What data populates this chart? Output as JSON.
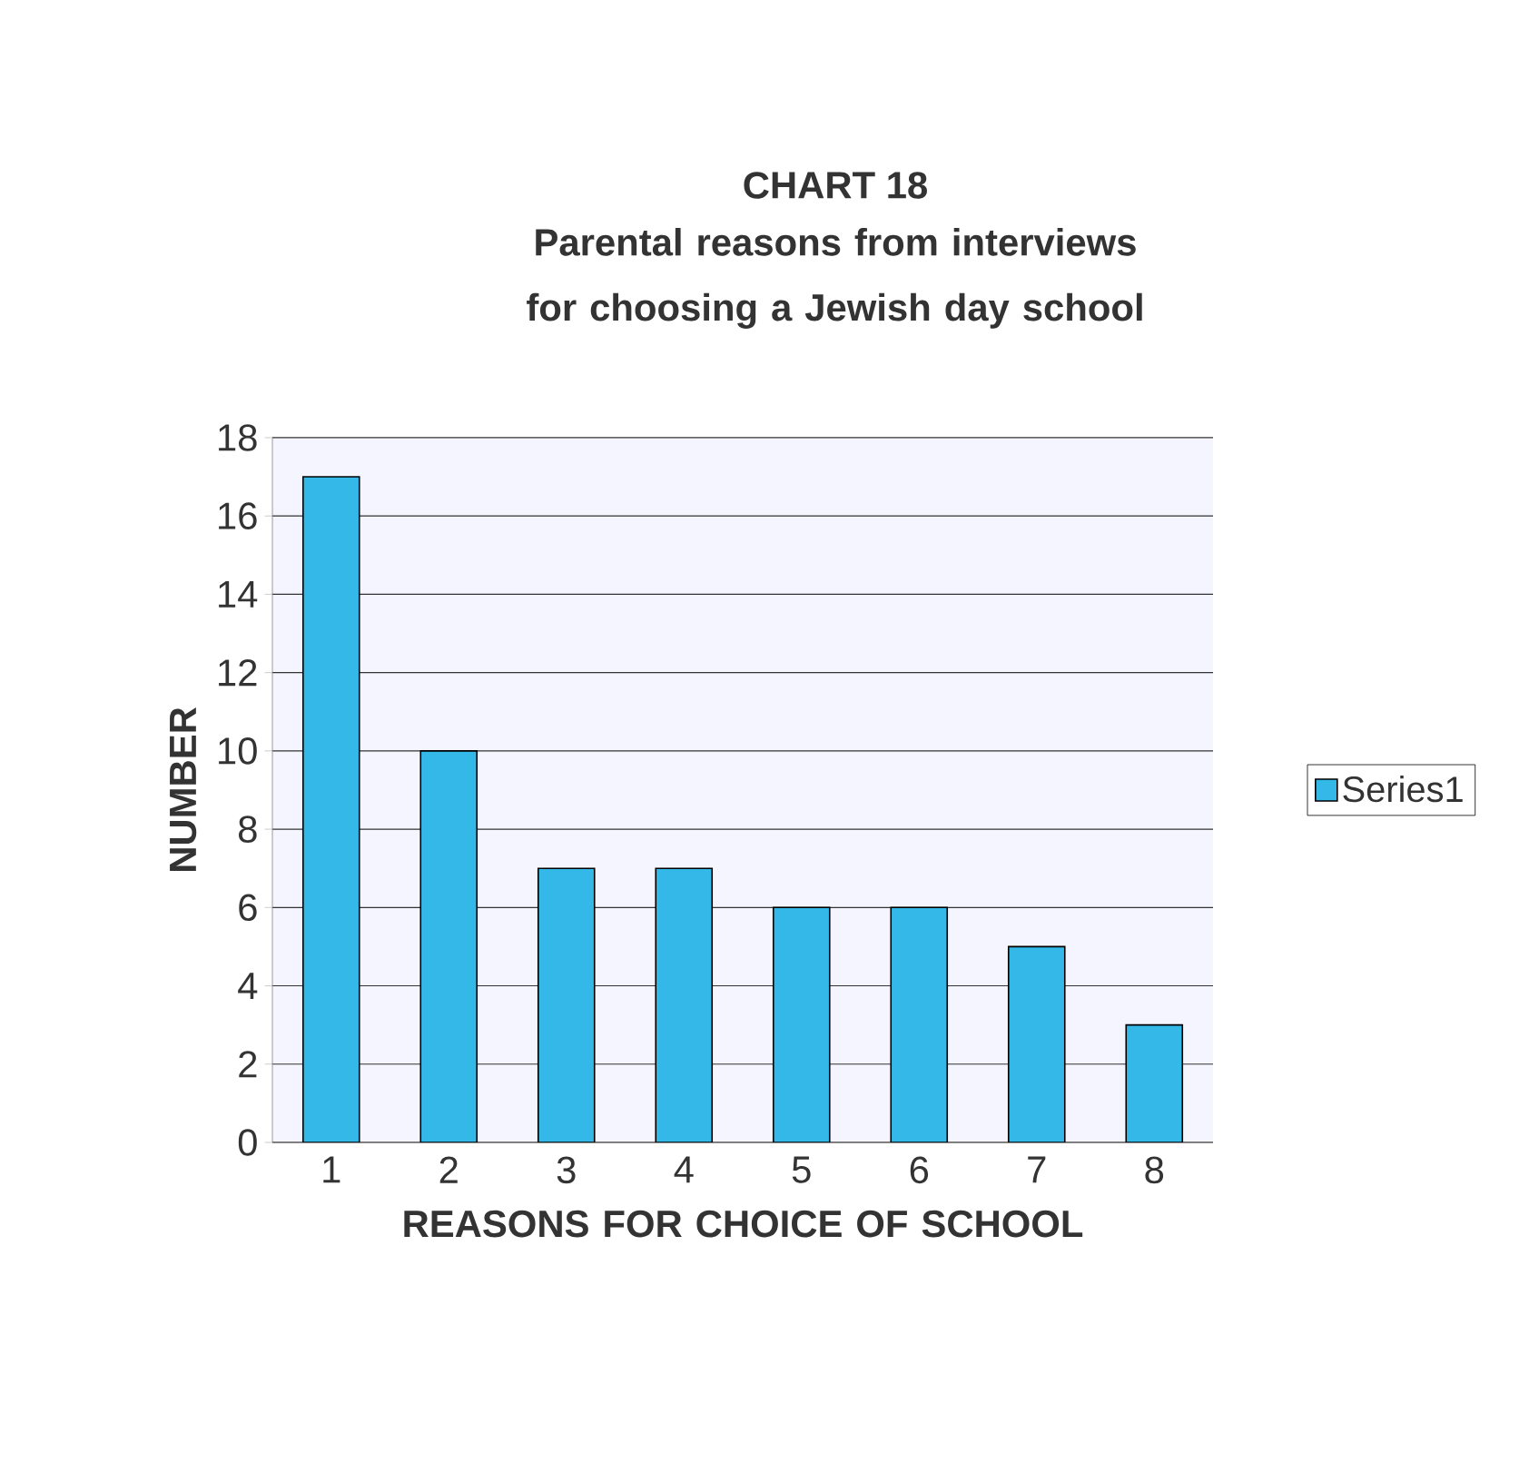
{
  "chart_data": {
    "type": "bar",
    "title": "CHART 18",
    "subtitle": "Parental reasons from interviews for choosing a Jewish day school",
    "xlabel": "REASONS FOR CHOICE OF SCHOOL",
    "ylabel": "NUMBER",
    "categories": [
      "1",
      "2",
      "3",
      "4",
      "5",
      "6",
      "7",
      "8"
    ],
    "series": [
      {
        "name": "Series1",
        "color": "#33b8e8",
        "values": [
          17,
          10,
          7,
          7,
          6,
          6,
          5,
          3
        ]
      }
    ],
    "ylim": [
      0,
      18
    ],
    "yticks": [
      0,
      2,
      4,
      6,
      8,
      10,
      12,
      14,
      16,
      18
    ],
    "grid": "y",
    "legend": "right"
  }
}
